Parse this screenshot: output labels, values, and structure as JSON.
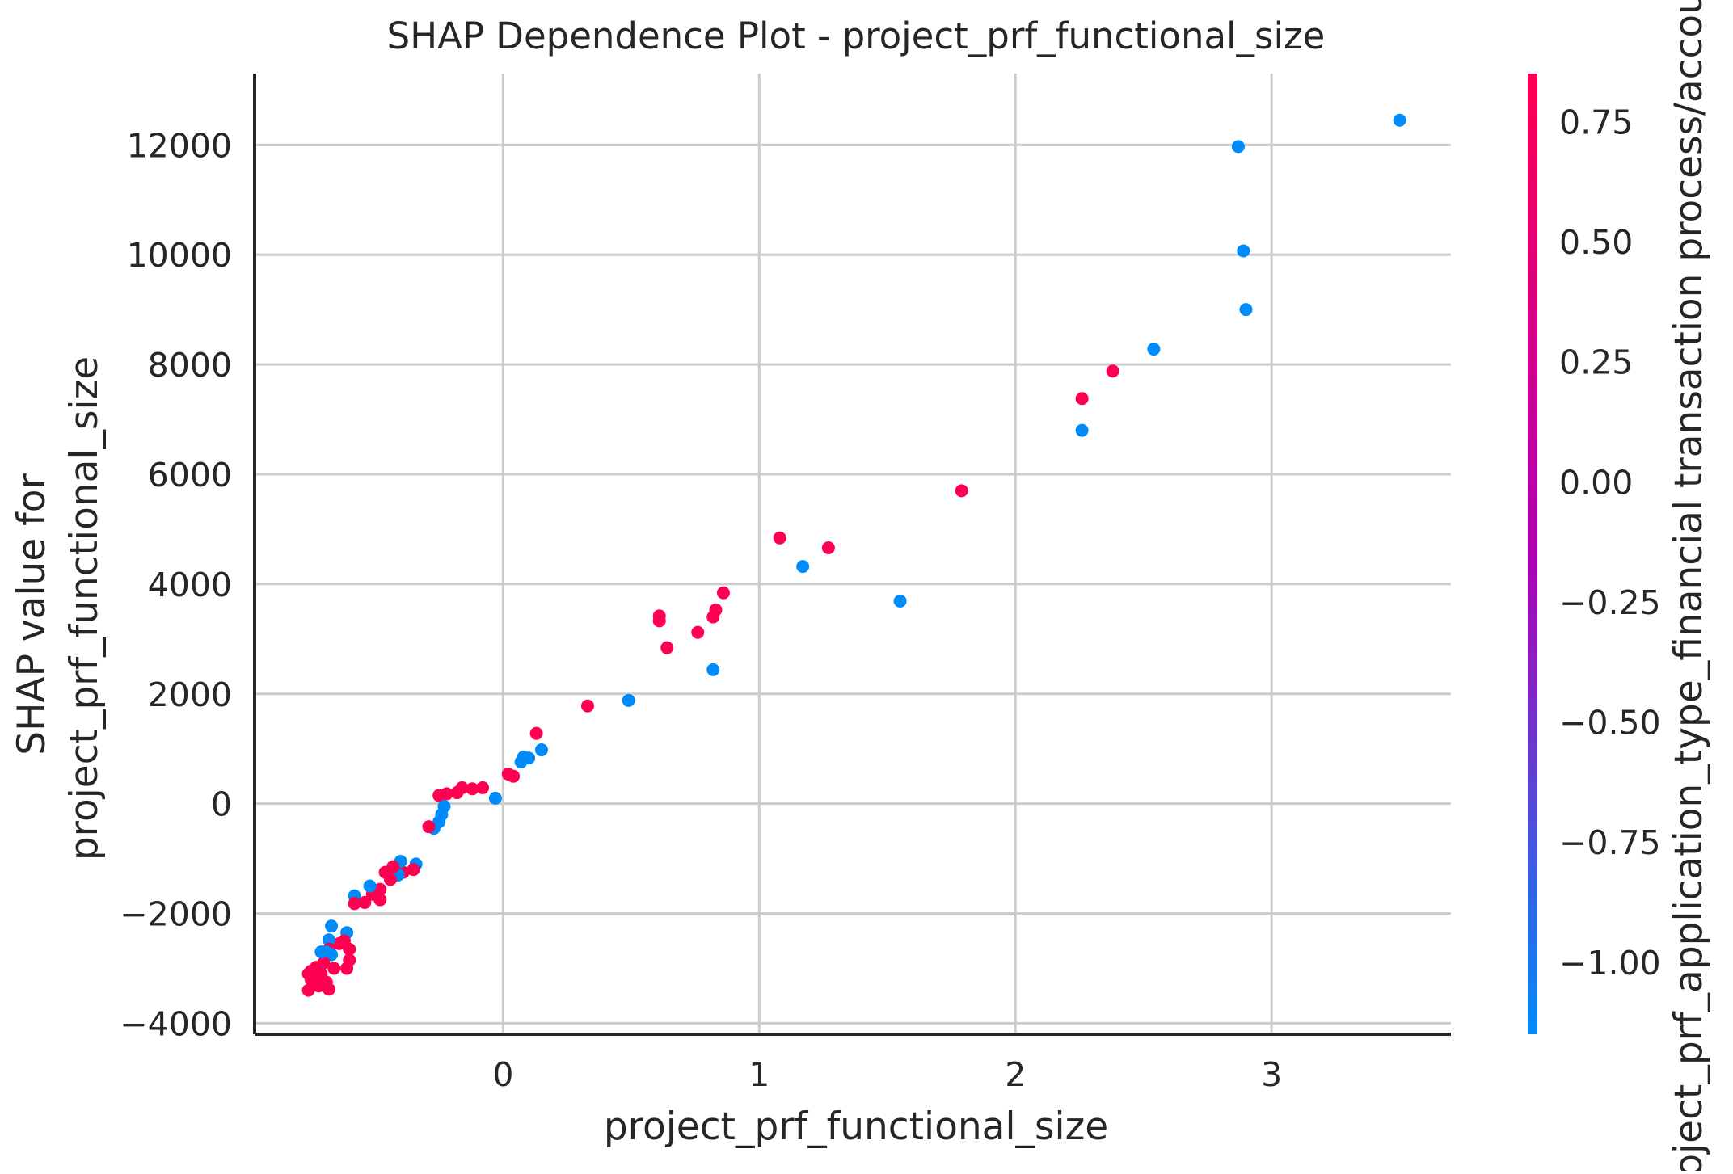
{
  "chart_data": {
    "type": "scatter",
    "title": "SHAP Dependence Plot - project_prf_functional_size",
    "xlabel": "project_prf_functional_size",
    "ylabel_lines": [
      "SHAP value for",
      "project_prf_functional_size"
    ],
    "xlim": [
      -0.97,
      3.7
    ],
    "ylim": [
      -4200,
      13300
    ],
    "x_ticks": [
      0,
      1,
      2,
      3
    ],
    "y_ticks": [
      -4000,
      -2000,
      0,
      2000,
      4000,
      6000,
      8000,
      10000,
      12000
    ],
    "x_tick_labels": [
      "0",
      "1",
      "2",
      "3"
    ],
    "y_tick_labels": [
      "−4000",
      "−2000",
      "0",
      "2000",
      "4000",
      "6000",
      "8000",
      "10000",
      "12000"
    ],
    "grid": true,
    "colorbar": {
      "label": "project_prf_application_type_financial transaction process/accounting",
      "range": [
        -1.15,
        0.85
      ],
      "ticks": [
        0.75,
        0.5,
        0.25,
        0.0,
        -0.25,
        -0.5,
        -0.75,
        -1.0
      ],
      "tick_labels": [
        "0.75",
        "0.50",
        "0.25",
        "0.00",
        "−0.25",
        "−0.50",
        "−0.75",
        "−1.00"
      ],
      "low_color": "#008bfb",
      "mid_color": "#b000b2",
      "high_color": "#ff0051"
    },
    "points": [
      {
        "x": 3.5,
        "y": 12450,
        "c": -1.15
      },
      {
        "x": 2.87,
        "y": 11970,
        "c": -1.15
      },
      {
        "x": 2.89,
        "y": 10070,
        "c": -1.15
      },
      {
        "x": 2.9,
        "y": 9000,
        "c": -1.15
      },
      {
        "x": 2.54,
        "y": 8280,
        "c": -1.15
      },
      {
        "x": 2.38,
        "y": 7880,
        "c": 0.85
      },
      {
        "x": 2.26,
        "y": 7380,
        "c": 0.85
      },
      {
        "x": 2.26,
        "y": 6800,
        "c": -1.15
      },
      {
        "x": 1.79,
        "y": 5700,
        "c": 0.85
      },
      {
        "x": 1.08,
        "y": 4840,
        "c": 0.85
      },
      {
        "x": 1.27,
        "y": 4660,
        "c": 0.85
      },
      {
        "x": 1.17,
        "y": 4320,
        "c": -1.15
      },
      {
        "x": 1.55,
        "y": 3690,
        "c": -1.15
      },
      {
        "x": 0.86,
        "y": 3840,
        "c": 0.85
      },
      {
        "x": 0.83,
        "y": 3530,
        "c": 0.85
      },
      {
        "x": 0.82,
        "y": 3400,
        "c": 0.85
      },
      {
        "x": 0.61,
        "y": 3420,
        "c": 0.85
      },
      {
        "x": 0.61,
        "y": 3330,
        "c": 0.85
      },
      {
        "x": 0.76,
        "y": 3120,
        "c": 0.85
      },
      {
        "x": 0.64,
        "y": 2840,
        "c": 0.85
      },
      {
        "x": 0.82,
        "y": 2440,
        "c": -1.15
      },
      {
        "x": 0.49,
        "y": 1880,
        "c": -1.15
      },
      {
        "x": 0.33,
        "y": 1780,
        "c": 0.85
      },
      {
        "x": 0.13,
        "y": 1280,
        "c": 0.85
      },
      {
        "x": 0.15,
        "y": 980,
        "c": -1.15
      },
      {
        "x": 0.08,
        "y": 850,
        "c": -1.15
      },
      {
        "x": 0.07,
        "y": 760,
        "c": -1.15
      },
      {
        "x": 0.1,
        "y": 830,
        "c": -1.15
      },
      {
        "x": 0.02,
        "y": 540,
        "c": 0.85
      },
      {
        "x": 0.04,
        "y": 500,
        "c": 0.85
      },
      {
        "x": -0.03,
        "y": 100,
        "c": -1.15
      },
      {
        "x": -0.08,
        "y": 290,
        "c": 0.85
      },
      {
        "x": -0.12,
        "y": 270,
        "c": 0.85
      },
      {
        "x": -0.16,
        "y": 290,
        "c": 0.85
      },
      {
        "x": -0.18,
        "y": 200,
        "c": 0.85
      },
      {
        "x": -0.22,
        "y": 180,
        "c": 0.85
      },
      {
        "x": -0.25,
        "y": 150,
        "c": 0.85
      },
      {
        "x": -0.23,
        "y": -50,
        "c": -1.15
      },
      {
        "x": -0.24,
        "y": -200,
        "c": -1.15
      },
      {
        "x": -0.25,
        "y": -330,
        "c": -1.15
      },
      {
        "x": -0.27,
        "y": -450,
        "c": -1.15
      },
      {
        "x": -0.29,
        "y": -420,
        "c": 0.85
      },
      {
        "x": -0.34,
        "y": -1100,
        "c": -1.15
      },
      {
        "x": -0.35,
        "y": -1200,
        "c": 0.85
      },
      {
        "x": -0.39,
        "y": -1250,
        "c": 0.85
      },
      {
        "x": -0.4,
        "y": -1050,
        "c": -1.15
      },
      {
        "x": -0.41,
        "y": -1300,
        "c": -1.15
      },
      {
        "x": -0.43,
        "y": -1150,
        "c": 0.85
      },
      {
        "x": -0.44,
        "y": -1380,
        "c": 0.85
      },
      {
        "x": -0.46,
        "y": -1250,
        "c": 0.85
      },
      {
        "x": -0.48,
        "y": -1560,
        "c": 0.85
      },
      {
        "x": -0.48,
        "y": -1750,
        "c": 0.85
      },
      {
        "x": -0.51,
        "y": -1650,
        "c": 0.85
      },
      {
        "x": -0.52,
        "y": -1500,
        "c": -1.15
      },
      {
        "x": -0.54,
        "y": -1800,
        "c": 0.85
      },
      {
        "x": -0.58,
        "y": -1680,
        "c": -1.15
      },
      {
        "x": -0.58,
        "y": -1820,
        "c": 0.85
      },
      {
        "x": -0.61,
        "y": -2350,
        "c": -1.15
      },
      {
        "x": -0.62,
        "y": -2500,
        "c": 0.85
      },
      {
        "x": -0.6,
        "y": -2650,
        "c": 0.85
      },
      {
        "x": -0.6,
        "y": -2850,
        "c": 0.85
      },
      {
        "x": -0.61,
        "y": -3000,
        "c": 0.85
      },
      {
        "x": -0.64,
        "y": -2550,
        "c": 0.85
      },
      {
        "x": -0.67,
        "y": -2230,
        "c": -1.15
      },
      {
        "x": -0.68,
        "y": -2480,
        "c": -1.15
      },
      {
        "x": -0.68,
        "y": -2650,
        "c": 0.85
      },
      {
        "x": -0.67,
        "y": -2750,
        "c": -1.15
      },
      {
        "x": -0.66,
        "y": -3000,
        "c": 0.85
      },
      {
        "x": -0.69,
        "y": -2700,
        "c": -1.15
      },
      {
        "x": -0.7,
        "y": -2900,
        "c": 0.85
      },
      {
        "x": -0.71,
        "y": -2700,
        "c": -1.15
      },
      {
        "x": -0.72,
        "y": -3050,
        "c": -1.15
      },
      {
        "x": -0.73,
        "y": -2980,
        "c": 0.85
      },
      {
        "x": -0.74,
        "y": -3150,
        "c": 0.85
      },
      {
        "x": -0.74,
        "y": -3300,
        "c": 0.85
      },
      {
        "x": -0.75,
        "y": -3050,
        "c": 0.85
      },
      {
        "x": -0.75,
        "y": -3200,
        "c": 0.85
      },
      {
        "x": -0.76,
        "y": -3100,
        "c": 0.85
      },
      {
        "x": -0.76,
        "y": -3400,
        "c": 0.85
      },
      {
        "x": -0.72,
        "y": -3320,
        "c": 0.85
      },
      {
        "x": -0.7,
        "y": -3230,
        "c": 0.85
      },
      {
        "x": -0.68,
        "y": -3380,
        "c": 0.85
      },
      {
        "x": -0.69,
        "y": -3250,
        "c": 0.85
      },
      {
        "x": -0.71,
        "y": -3100,
        "c": 0.85
      }
    ]
  }
}
